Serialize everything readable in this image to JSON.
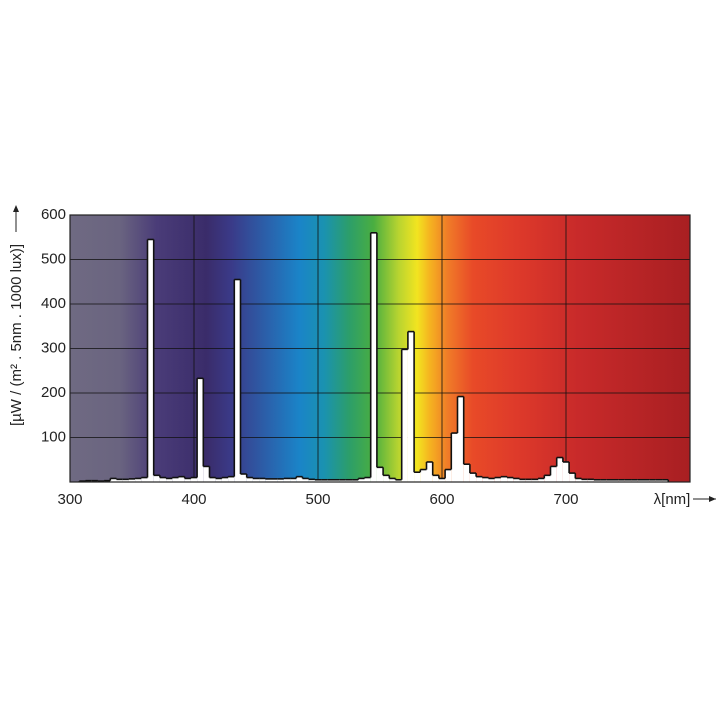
{
  "chart_data": {
    "type": "histogram",
    "x_label": "λ[nm]",
    "y_label": "[µW / (m² . 5nm . 1000 lux)]",
    "bins": [
      307.5,
      312.5,
      317.5,
      322.5,
      327.5,
      332.5,
      337.5,
      342.5,
      347.5,
      352.5,
      357.5,
      362.5,
      367.5,
      372.5,
      377.5,
      382.5,
      387.5,
      392.5,
      397.5,
      402.5,
      407.5,
      412.5,
      417.5,
      422.5,
      427.5,
      432.5,
      437.5,
      442.5,
      447.5,
      452.5,
      457.5,
      462.5,
      467.5,
      472.5,
      477.5,
      482.5,
      487.5,
      492.5,
      497.5,
      502.5,
      507.5,
      512.5,
      517.5,
      522.5,
      527.5,
      532.5,
      537.5,
      542.5,
      547.5,
      552.5,
      557.5,
      562.5,
      567.5,
      572.5,
      577.5,
      582.5,
      587.5,
      592.5,
      597.5,
      602.5,
      607.5,
      612.5,
      617.5,
      622.5,
      627.5,
      632.5,
      637.5,
      642.5,
      647.5,
      652.5,
      657.5,
      662.5,
      667.5,
      672.5,
      677.5,
      682.5,
      687.5,
      692.5,
      697.5,
      702.5,
      707.5,
      712.5,
      717.5,
      722.5,
      727.5,
      732.5,
      737.5,
      742.5,
      747.5,
      752.5,
      757.5,
      762.5,
      767.5,
      772.5,
      777.5,
      782.5
    ],
    "values": [
      2,
      3,
      3,
      2,
      3,
      8,
      6,
      6,
      7,
      8,
      10,
      545,
      15,
      10,
      8,
      10,
      12,
      8,
      10,
      233,
      35,
      10,
      8,
      10,
      12,
      455,
      18,
      10,
      8,
      8,
      7,
      7,
      7,
      8,
      8,
      12,
      8,
      6,
      5,
      5,
      5,
      5,
      5,
      5,
      5,
      8,
      10,
      560,
      33,
      15,
      8,
      5,
      298,
      338,
      22,
      28,
      45,
      15,
      8,
      28,
      110,
      192,
      40,
      20,
      12,
      10,
      8,
      10,
      12,
      10,
      8,
      6,
      6,
      6,
      8,
      15,
      35,
      55,
      45,
      20,
      8,
      6,
      6,
      5,
      5,
      5,
      5,
      5,
      5,
      5,
      5,
      5,
      5,
      5,
      5
    ],
    "color": "#ffffff",
    "xlim": [
      300,
      800
    ],
    "ylim": [
      0,
      600
    ],
    "xticks": [
      300,
      400,
      500,
      600,
      700
    ],
    "yticks": [
      100,
      200,
      300,
      400,
      500,
      600
    ],
    "grid": true
  }
}
